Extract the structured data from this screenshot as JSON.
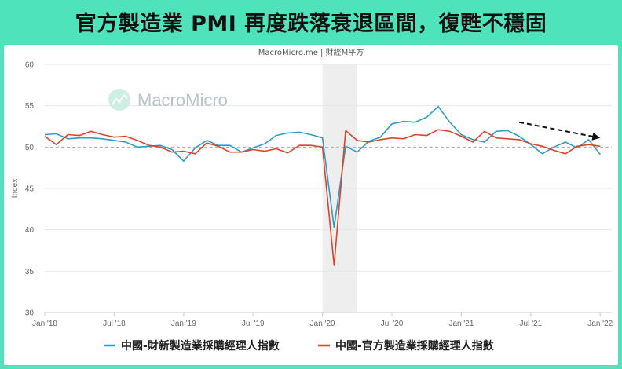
{
  "headline": "官方製造業 PMI 再度跌落衰退區間，復甦不穩固",
  "source": "MacroMicro.me | 財經M平方",
  "watermark": "MacroMicro",
  "colors": {
    "caixin": "#2e9bc9",
    "official": "#d9442c",
    "background": "#4ee3bb",
    "reference_line": "#aaaaaa",
    "covid_band": "#eeeeee"
  },
  "chart_data": {
    "type": "line",
    "title": "",
    "xlabel": "",
    "ylabel": "Index",
    "ylim": [
      30,
      60
    ],
    "yticks": [
      30,
      35,
      40,
      45,
      50,
      55,
      60
    ],
    "x_start": "2018-01",
    "x_end": "2022-02",
    "xticks": [
      {
        "date": "2018-01",
        "label": "Jan '18"
      },
      {
        "date": "2018-07",
        "label": "Jul '18"
      },
      {
        "date": "2019-01",
        "label": "Jan '19"
      },
      {
        "date": "2019-07",
        "label": "Jul '19"
      },
      {
        "date": "2020-01",
        "label": "Jan '20"
      },
      {
        "date": "2020-07",
        "label": "Jul '20"
      },
      {
        "date": "2021-01",
        "label": "Jan '21"
      },
      {
        "date": "2021-07",
        "label": "Jul '21"
      },
      {
        "date": "2022-01",
        "label": "Jan '22"
      }
    ],
    "reference_line": 50,
    "shaded_period": [
      "2020-01",
      "2020-04"
    ],
    "trend_arrow": {
      "from": [
        "2021-06",
        53
      ],
      "to": [
        "2022-01",
        51.1
      ]
    },
    "legend_position": "bottom",
    "series": [
      {
        "name": "中國-財新製造業採購經理人指數",
        "color": "#2e9bc9",
        "points": [
          [
            "2018-01",
            51.5
          ],
          [
            "2018-02",
            51.6
          ],
          [
            "2018-03",
            51.0
          ],
          [
            "2018-04",
            51.1
          ],
          [
            "2018-05",
            51.1
          ],
          [
            "2018-06",
            51.0
          ],
          [
            "2018-07",
            50.8
          ],
          [
            "2018-08",
            50.6
          ],
          [
            "2018-09",
            50.0
          ],
          [
            "2018-10",
            50.1
          ],
          [
            "2018-11",
            50.2
          ],
          [
            "2018-12",
            49.7
          ],
          [
            "2019-01",
            48.3
          ],
          [
            "2019-02",
            49.9
          ],
          [
            "2019-03",
            50.8
          ],
          [
            "2019-04",
            50.2
          ],
          [
            "2019-05",
            50.2
          ],
          [
            "2019-06",
            49.4
          ],
          [
            "2019-07",
            49.9
          ],
          [
            "2019-08",
            50.4
          ],
          [
            "2019-09",
            51.4
          ],
          [
            "2019-10",
            51.7
          ],
          [
            "2019-11",
            51.8
          ],
          [
            "2019-12",
            51.5
          ],
          [
            "2020-01",
            51.1
          ],
          [
            "2020-02",
            40.3
          ],
          [
            "2020-03",
            50.1
          ],
          [
            "2020-04",
            49.4
          ],
          [
            "2020-05",
            50.7
          ],
          [
            "2020-06",
            51.2
          ],
          [
            "2020-07",
            52.8
          ],
          [
            "2020-08",
            53.1
          ],
          [
            "2020-09",
            53.0
          ],
          [
            "2020-10",
            53.6
          ],
          [
            "2020-11",
            54.9
          ],
          [
            "2020-12",
            53.0
          ],
          [
            "2021-01",
            51.5
          ],
          [
            "2021-02",
            50.9
          ],
          [
            "2021-03",
            50.6
          ],
          [
            "2021-04",
            51.9
          ],
          [
            "2021-05",
            52.0
          ],
          [
            "2021-06",
            51.3
          ],
          [
            "2021-07",
            50.3
          ],
          [
            "2021-08",
            49.2
          ],
          [
            "2021-09",
            50.0
          ],
          [
            "2021-10",
            50.6
          ],
          [
            "2021-11",
            49.9
          ],
          [
            "2021-12",
            50.9
          ],
          [
            "2022-01",
            49.1
          ]
        ]
      },
      {
        "name": "中國-官方製造業採購經理人指數",
        "color": "#d9442c",
        "points": [
          [
            "2018-01",
            51.3
          ],
          [
            "2018-02",
            50.3
          ],
          [
            "2018-03",
            51.5
          ],
          [
            "2018-04",
            51.4
          ],
          [
            "2018-05",
            51.9
          ],
          [
            "2018-06",
            51.5
          ],
          [
            "2018-07",
            51.2
          ],
          [
            "2018-08",
            51.3
          ],
          [
            "2018-09",
            50.8
          ],
          [
            "2018-10",
            50.2
          ],
          [
            "2018-11",
            50.0
          ],
          [
            "2018-12",
            49.4
          ],
          [
            "2019-01",
            49.5
          ],
          [
            "2019-02",
            49.2
          ],
          [
            "2019-03",
            50.5
          ],
          [
            "2019-04",
            50.1
          ],
          [
            "2019-05",
            49.4
          ],
          [
            "2019-06",
            49.4
          ],
          [
            "2019-07",
            49.7
          ],
          [
            "2019-08",
            49.5
          ],
          [
            "2019-09",
            49.8
          ],
          [
            "2019-10",
            49.3
          ],
          [
            "2019-11",
            50.2
          ],
          [
            "2019-12",
            50.2
          ],
          [
            "2020-01",
            50.0
          ],
          [
            "2020-02",
            35.7
          ],
          [
            "2020-03",
            52.0
          ],
          [
            "2020-04",
            50.8
          ],
          [
            "2020-05",
            50.6
          ],
          [
            "2020-06",
            50.9
          ],
          [
            "2020-07",
            51.1
          ],
          [
            "2020-08",
            51.0
          ],
          [
            "2020-09",
            51.5
          ],
          [
            "2020-10",
            51.4
          ],
          [
            "2020-11",
            52.1
          ],
          [
            "2020-12",
            51.9
          ],
          [
            "2021-01",
            51.3
          ],
          [
            "2021-02",
            50.6
          ],
          [
            "2021-03",
            51.9
          ],
          [
            "2021-04",
            51.1
          ],
          [
            "2021-05",
            51.0
          ],
          [
            "2021-06",
            50.9
          ],
          [
            "2021-07",
            50.4
          ],
          [
            "2021-08",
            50.1
          ],
          [
            "2021-09",
            49.6
          ],
          [
            "2021-10",
            49.2
          ],
          [
            "2021-11",
            50.1
          ],
          [
            "2021-12",
            50.3
          ],
          [
            "2022-01",
            50.1
          ]
        ]
      }
    ]
  }
}
